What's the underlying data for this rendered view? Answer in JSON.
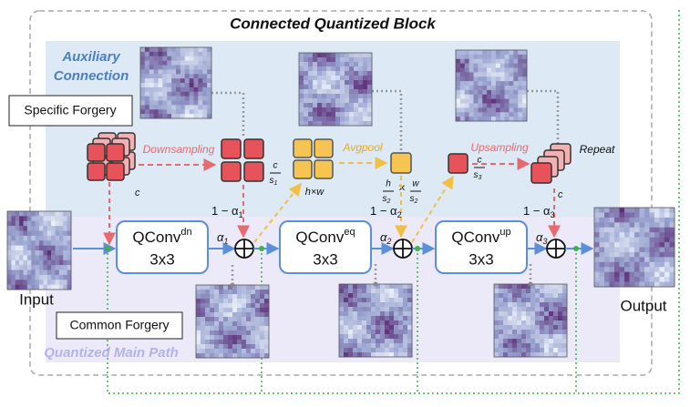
{
  "title": "Connected Quantized Block",
  "auxiliary": [
    "Auxiliary",
    "Connection"
  ],
  "main_path": "Quantized Main Path",
  "specific_forgery": "Specific Forgery",
  "common_forgery": "Common Forgery",
  "input": "Input",
  "output": "Output",
  "channel": "c",
  "ops": {
    "downsampling": "Downsampling",
    "avgpool": "Avgpool",
    "upsampling": "Upsampling",
    "repeat": "Repeat"
  },
  "dims": {
    "down": [
      "c",
      "s",
      "1"
    ],
    "hw": "h×w",
    "pool": [
      "h",
      "s",
      "2",
      "×",
      "w",
      "s",
      "2"
    ],
    "up": [
      "c",
      "s",
      "3"
    ]
  },
  "blocks": [
    {
      "name": "QConv",
      "sup": "dn",
      "kernel": "3x3",
      "alpha": "α",
      "index": "1",
      "mix": "1 − α"
    },
    {
      "name": "QConv",
      "sup": "eq",
      "kernel": "3x3",
      "alpha": "α",
      "index": "2",
      "mix": "1 − α"
    },
    {
      "name": "QConv",
      "sup": "up",
      "kernel": "3x3",
      "alpha": "α",
      "index": "3",
      "mix": "1 − α"
    }
  ]
}
